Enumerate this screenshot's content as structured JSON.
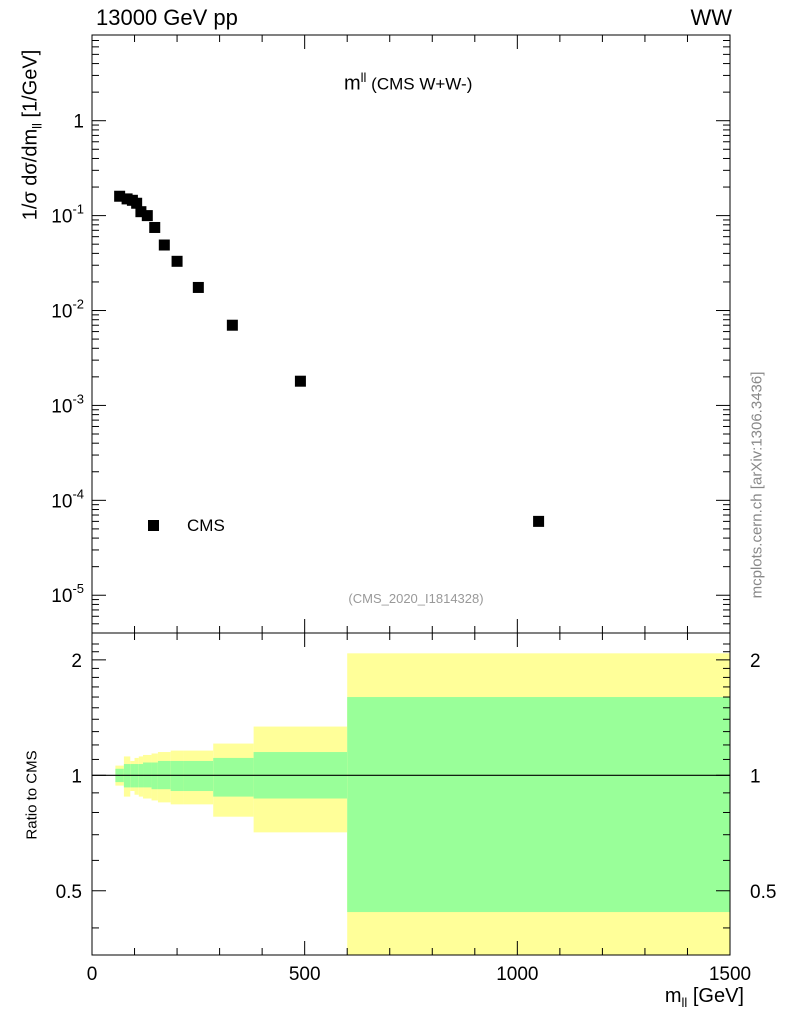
{
  "header": {
    "left": "13000 GeV pp",
    "right": "WW"
  },
  "watermark": "mcplots.cern.ch [arXiv:1306.3436]",
  "analysis_id": "(CMS_2020_I1814328)",
  "colors": {
    "data_marker": "#000000",
    "band_inner": "#99ff99",
    "band_outer": "#ffff99",
    "analysis_text": "#999999",
    "watermark_text": "#888888"
  },
  "chart_data": [
    {
      "type": "scatter",
      "title_main": "m",
      "title_sup": "ll",
      "title_rest": " (CMS W+W-)",
      "ylabel_main": "1/σ dσ/dm",
      "ylabel_sub": "ll",
      "ylabel_rest": " [1/GeV]",
      "yscale": "log",
      "xlim": [
        0,
        1500
      ],
      "ylim": [
        4e-06,
        8
      ],
      "y_tick_labels": [
        "1",
        "10^-1",
        "10^-2",
        "10^-3",
        "10^-4",
        "10^-5"
      ],
      "legend": {
        "label": "CMS",
        "position": "bottom-left"
      },
      "series": [
        {
          "name": "CMS",
          "x": [
            65,
            82.5,
            95,
            105,
            115,
            130,
            147.5,
            170,
            200,
            250,
            330,
            490,
            1050
          ],
          "y": [
            0.16,
            0.15,
            0.145,
            0.135,
            0.11,
            0.1,
            0.075,
            0.049,
            0.033,
            0.0175,
            0.007,
            0.0018,
            6e-05
          ]
        }
      ]
    },
    {
      "type": "area",
      "ylabel": "Ratio to CMS",
      "xlabel_main": "m",
      "xlabel_sub": "ll",
      "xlabel_rest": " [GeV]",
      "xlim": [
        0,
        1500
      ],
      "ylim": [
        0.34,
        2.35
      ],
      "x_tick_labels": [
        "0",
        "500",
        "1000",
        "1500"
      ],
      "y_tick_labels": [
        "0.5",
        "1",
        "2"
      ],
      "reference_line": 1,
      "bands": [
        {
          "x": [
            55,
            75
          ],
          "inner": [
            0.96,
            1.04
          ],
          "outer": [
            0.94,
            1.06
          ]
        },
        {
          "x": [
            75,
            90
          ],
          "inner": [
            0.93,
            1.07
          ],
          "outer": [
            0.88,
            1.12
          ]
        },
        {
          "x": [
            90,
            100
          ],
          "inner": [
            0.93,
            1.07
          ],
          "outer": [
            0.91,
            1.09
          ]
        },
        {
          "x": [
            100,
            110
          ],
          "inner": [
            0.93,
            1.07
          ],
          "outer": [
            0.89,
            1.11
          ]
        },
        {
          "x": [
            110,
            120
          ],
          "inner": [
            0.93,
            1.07
          ],
          "outer": [
            0.88,
            1.12
          ]
        },
        {
          "x": [
            120,
            140
          ],
          "inner": [
            0.93,
            1.08
          ],
          "outer": [
            0.87,
            1.13
          ]
        },
        {
          "x": [
            140,
            155
          ],
          "inner": [
            0.92,
            1.08
          ],
          "outer": [
            0.86,
            1.14
          ]
        },
        {
          "x": [
            155,
            185
          ],
          "inner": [
            0.92,
            1.09
          ],
          "outer": [
            0.85,
            1.15
          ]
        },
        {
          "x": [
            185,
            215
          ],
          "inner": [
            0.91,
            1.09
          ],
          "outer": [
            0.84,
            1.16
          ]
        },
        {
          "x": [
            215,
            285
          ],
          "inner": [
            0.91,
            1.09
          ],
          "outer": [
            0.84,
            1.16
          ]
        },
        {
          "x": [
            285,
            380
          ],
          "inner": [
            0.88,
            1.11
          ],
          "outer": [
            0.78,
            1.21
          ]
        },
        {
          "x": [
            380,
            600
          ],
          "inner": [
            0.87,
            1.15
          ],
          "outer": [
            0.71,
            1.34
          ]
        },
        {
          "x": [
            600,
            1500
          ],
          "inner": [
            0.44,
            1.6
          ],
          "outer": [
            0.34,
            2.08
          ]
        }
      ]
    }
  ]
}
